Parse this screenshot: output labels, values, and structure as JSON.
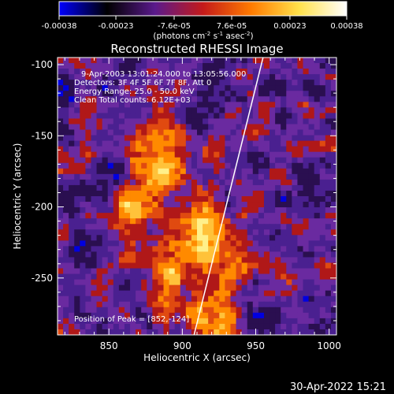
{
  "chart_data": {
    "type": "heatmap",
    "title": "Reconstructed RHESSI Image",
    "xlabel": "Heliocentric X (arcsec)",
    "ylabel": "Heliocentric Y (arcsec)",
    "xlim": [
      815,
      1005
    ],
    "ylim": [
      -290,
      -95
    ],
    "x_ticks": [
      850,
      900,
      950,
      1000
    ],
    "y_ticks": [
      -100,
      -150,
      -200,
      -250
    ],
    "colorbar": {
      "range": [
        -0.00038,
        0.00038
      ],
      "tick_values": [
        -0.00038,
        -0.00023,
        -7.6e-05,
        7.6e-05,
        0.00023,
        0.00038
      ],
      "tick_labels": [
        "-0.00038",
        "-0.00023",
        "-7.6e-05",
        "7.6e-05",
        "0.00023",
        "0.00038"
      ],
      "units_prefix": "(photons cm",
      "units_exp1": "-2",
      "units_mid": " s",
      "units_exp2": "-1",
      "units_mid2": " asec",
      "units_exp3": "-2",
      "units_suffix": ")",
      "colormap": [
        "#0000ff",
        "#000000",
        "#5a1a8c",
        "#c41a1a",
        "#ff7a00",
        "#ffe14a",
        "#ffffff"
      ]
    },
    "annotations": [
      "9-Apr-2003 13:01:24.000 to 13:05:56.000",
      "Detectors: 3F 4F 5F 6F 7F 8F, Att 0",
      "Energy Range: 25.0 - 50.0 keV",
      "Clean   Total counts: 6.12E+03"
    ],
    "peak_label": "Position of Peak = [852,-124]",
    "peak": [
      852,
      -124
    ],
    "limb_line": [
      [
        908,
        -290
      ],
      [
        955,
        -95
      ]
    ],
    "grid": false,
    "legend": "none"
  },
  "footer": {
    "timestamp": "30-Apr-2022 15:21"
  }
}
